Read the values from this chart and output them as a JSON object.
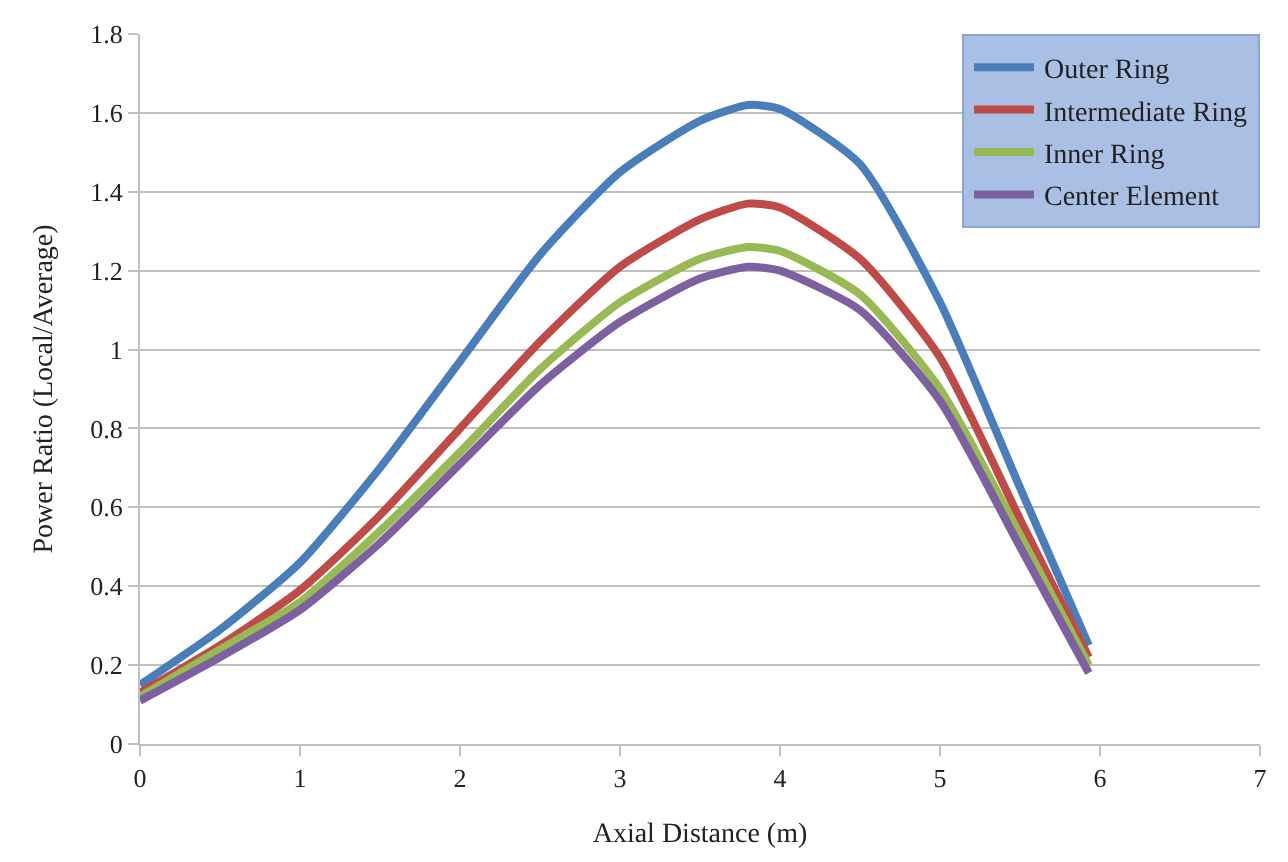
{
  "chart_data": {
    "type": "line",
    "xlabel": "Axial Distance (m)",
    "ylabel": "Power Ratio (Local/Average)",
    "x": [
      0,
      0.5,
      1,
      1.5,
      2,
      2.5,
      3,
      3.5,
      3.8,
      4,
      4.5,
      5,
      5.5,
      5.93
    ],
    "series": [
      {
        "name": "Outer Ring",
        "color": "#4a7ebb",
        "values": [
          0.15,
          0.29,
          0.46,
          0.7,
          0.97,
          1.24,
          1.45,
          1.58,
          1.62,
          1.61,
          1.47,
          1.12,
          0.65,
          0.25
        ]
      },
      {
        "name": "Intermediate Ring",
        "color": "#be4b48",
        "values": [
          0.13,
          0.25,
          0.39,
          0.58,
          0.8,
          1.02,
          1.21,
          1.33,
          1.37,
          1.36,
          1.23,
          0.98,
          0.57,
          0.22
        ]
      },
      {
        "name": "Inner Ring",
        "color": "#98b954",
        "values": [
          0.12,
          0.24,
          0.36,
          0.54,
          0.74,
          0.95,
          1.12,
          1.23,
          1.26,
          1.25,
          1.14,
          0.9,
          0.53,
          0.2
        ]
      },
      {
        "name": "Center Element",
        "color": "#7d60a0",
        "values": [
          0.11,
          0.22,
          0.34,
          0.51,
          0.71,
          0.91,
          1.07,
          1.18,
          1.21,
          1.2,
          1.1,
          0.87,
          0.5,
          0.18
        ]
      }
    ],
    "xlim": [
      0,
      7
    ],
    "xticks": [
      0,
      1,
      2,
      3,
      4,
      5,
      6,
      7
    ],
    "ylim": [
      0,
      1.8
    ],
    "yticks": [
      0,
      0.2,
      0.4,
      0.6,
      0.8,
      1,
      1.2,
      1.4,
      1.6,
      1.8
    ],
    "grid": "y",
    "legend": "top right",
    "marker": "none",
    "line_style": "solid"
  }
}
